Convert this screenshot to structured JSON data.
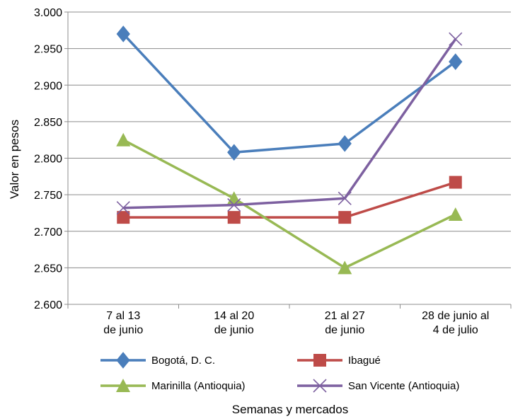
{
  "chart_data": {
    "type": "line",
    "title": "",
    "xlabel": "Semanas y mercados",
    "ylabel": "Valor en pesos",
    "ylim": [
      2600,
      3000
    ],
    "y_ticks": [
      2600,
      2650,
      2700,
      2750,
      2800,
      2850,
      2900,
      2950,
      3000
    ],
    "y_tick_labels": [
      "2.600",
      "2.650",
      "2.700",
      "2.750",
      "2.800",
      "2.850",
      "2.900",
      "2.950",
      "3.000"
    ],
    "categories": [
      [
        "7 al 13",
        "de junio"
      ],
      [
        "14 al 20",
        "de junio"
      ],
      [
        "21 al 27",
        "de junio"
      ],
      [
        "28 de junio al",
        "4 de julio"
      ]
    ],
    "grid": "horizontal",
    "legend_position": "bottom",
    "series": [
      {
        "name": "Bogotá, D. C.",
        "values": [
          2970,
          2808,
          2820,
          2932
        ],
        "color": "#4a7ebb",
        "marker": "diamond"
      },
      {
        "name": "Ibagué",
        "values": [
          2719,
          2719,
          2719,
          2767
        ],
        "color": "#be4b48",
        "marker": "square"
      },
      {
        "name": "Marinilla (Antioquia)",
        "values": [
          2825,
          2745,
          2650,
          2723
        ],
        "color": "#98b954",
        "marker": "triangle"
      },
      {
        "name": "San Vicente (Antioquia)",
        "values": [
          2732,
          2736,
          2745,
          2963
        ],
        "color": "#7d60a0",
        "marker": "x"
      }
    ]
  }
}
